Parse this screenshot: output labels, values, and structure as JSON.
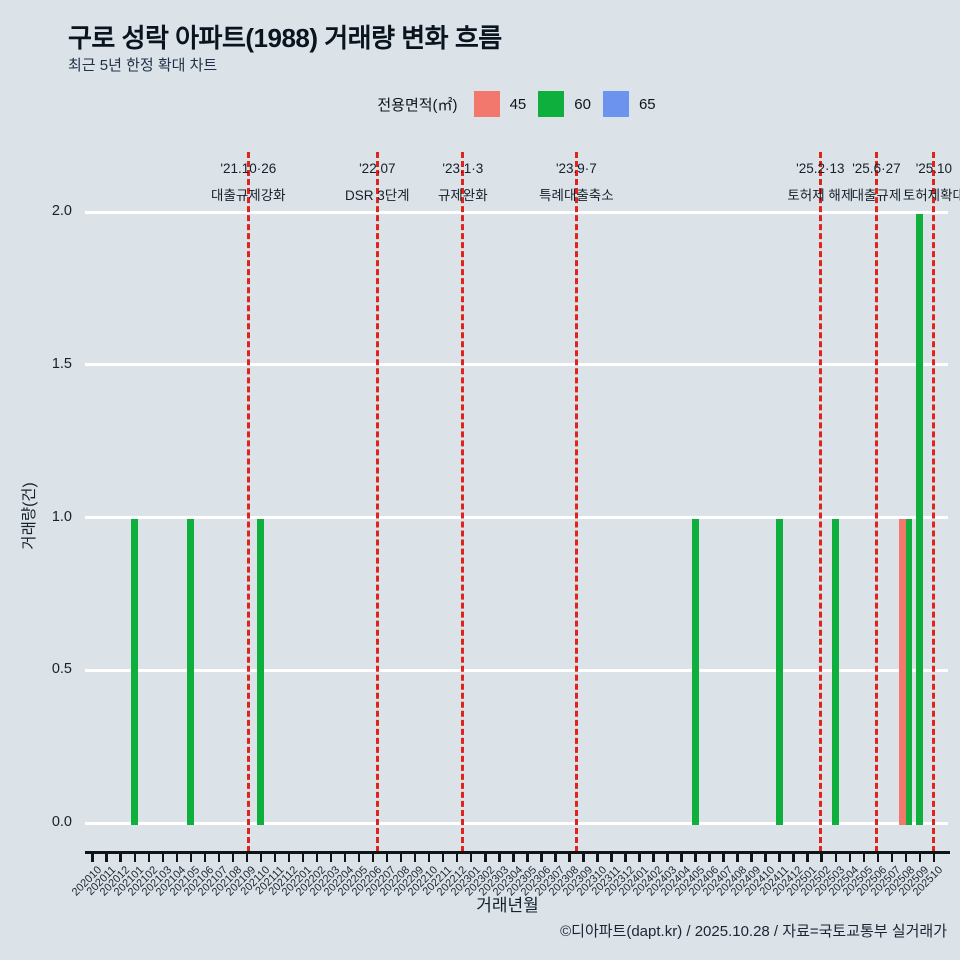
{
  "chart_data": {
    "type": "bar",
    "title": "구로 성락 아파트(1988) 거래량 변화 흐름",
    "subtitle": "최근 5년 한정 확대 차트",
    "legend_title": "전용면적(㎡)",
    "xlabel": "거래년월",
    "ylabel": "거래량(건)",
    "ylim": [
      0,
      2.0
    ],
    "yticks": [
      "0.0",
      "0.5",
      "1.0",
      "1.5",
      "2.0"
    ],
    "grid": "horizontal-white",
    "legend_position": "top-center",
    "categories": [
      "202010",
      "202011",
      "202012",
      "202101",
      "202102",
      "202103",
      "202104",
      "202105",
      "202106",
      "202107",
      "202108",
      "202109",
      "202110",
      "202111",
      "202112",
      "202201",
      "202202",
      "202203",
      "202204",
      "202205",
      "202206",
      "202207",
      "202208",
      "202209",
      "202210",
      "202211",
      "202212",
      "202301",
      "202302",
      "202303",
      "202304",
      "202305",
      "202306",
      "202307",
      "202308",
      "202309",
      "202310",
      "202311",
      "202312",
      "202401",
      "202402",
      "202403",
      "202404",
      "202405",
      "202406",
      "202407",
      "202408",
      "202409",
      "202410",
      "202411",
      "202412",
      "202501",
      "202502",
      "202503",
      "202504",
      "202505",
      "202506",
      "202507",
      "202508",
      "202509",
      "202510"
    ],
    "series": [
      {
        "name": "45",
        "color": "#F2776D",
        "points": [
          {
            "month": "202508",
            "value": 1
          }
        ]
      },
      {
        "name": "60",
        "color": "#0EAF3C",
        "points": [
          {
            "month": "202101",
            "value": 1
          },
          {
            "month": "202105",
            "value": 1
          },
          {
            "month": "202110",
            "value": 1
          },
          {
            "month": "202405",
            "value": 1
          },
          {
            "month": "202411",
            "value": 1
          },
          {
            "month": "202503",
            "value": 1
          },
          {
            "month": "202508",
            "value": 1
          },
          {
            "month": "202509",
            "value": 2
          }
        ]
      },
      {
        "name": "65",
        "color": "#6C93EE",
        "points": []
      }
    ],
    "events": [
      {
        "date": "'21.10·26",
        "label": "대출규제강화",
        "x_index": 11.1
      },
      {
        "date": "'22.07",
        "label": "DSR 3단계",
        "x_index": 20.3
      },
      {
        "date": "'23.1·3",
        "label": "규제완화",
        "x_index": 26.4
      },
      {
        "date": "'23.9·7",
        "label": "특례대출축소",
        "x_index": 34.5
      },
      {
        "date": "'25.2·13",
        "label": "토허제 해제",
        "x_index": 51.9
      },
      {
        "date": "'25.6·27",
        "label": "대출규제",
        "x_index": 55.9
      },
      {
        "date": "'25.10",
        "label": "토허제확대",
        "x_index": 60.0
      }
    ],
    "event_line_color": "#E0241C"
  },
  "footer": {
    "credit": "©디아파트(dapt.kr) / 2025.10.28 / 자료=국토교통부 실거래가"
  }
}
